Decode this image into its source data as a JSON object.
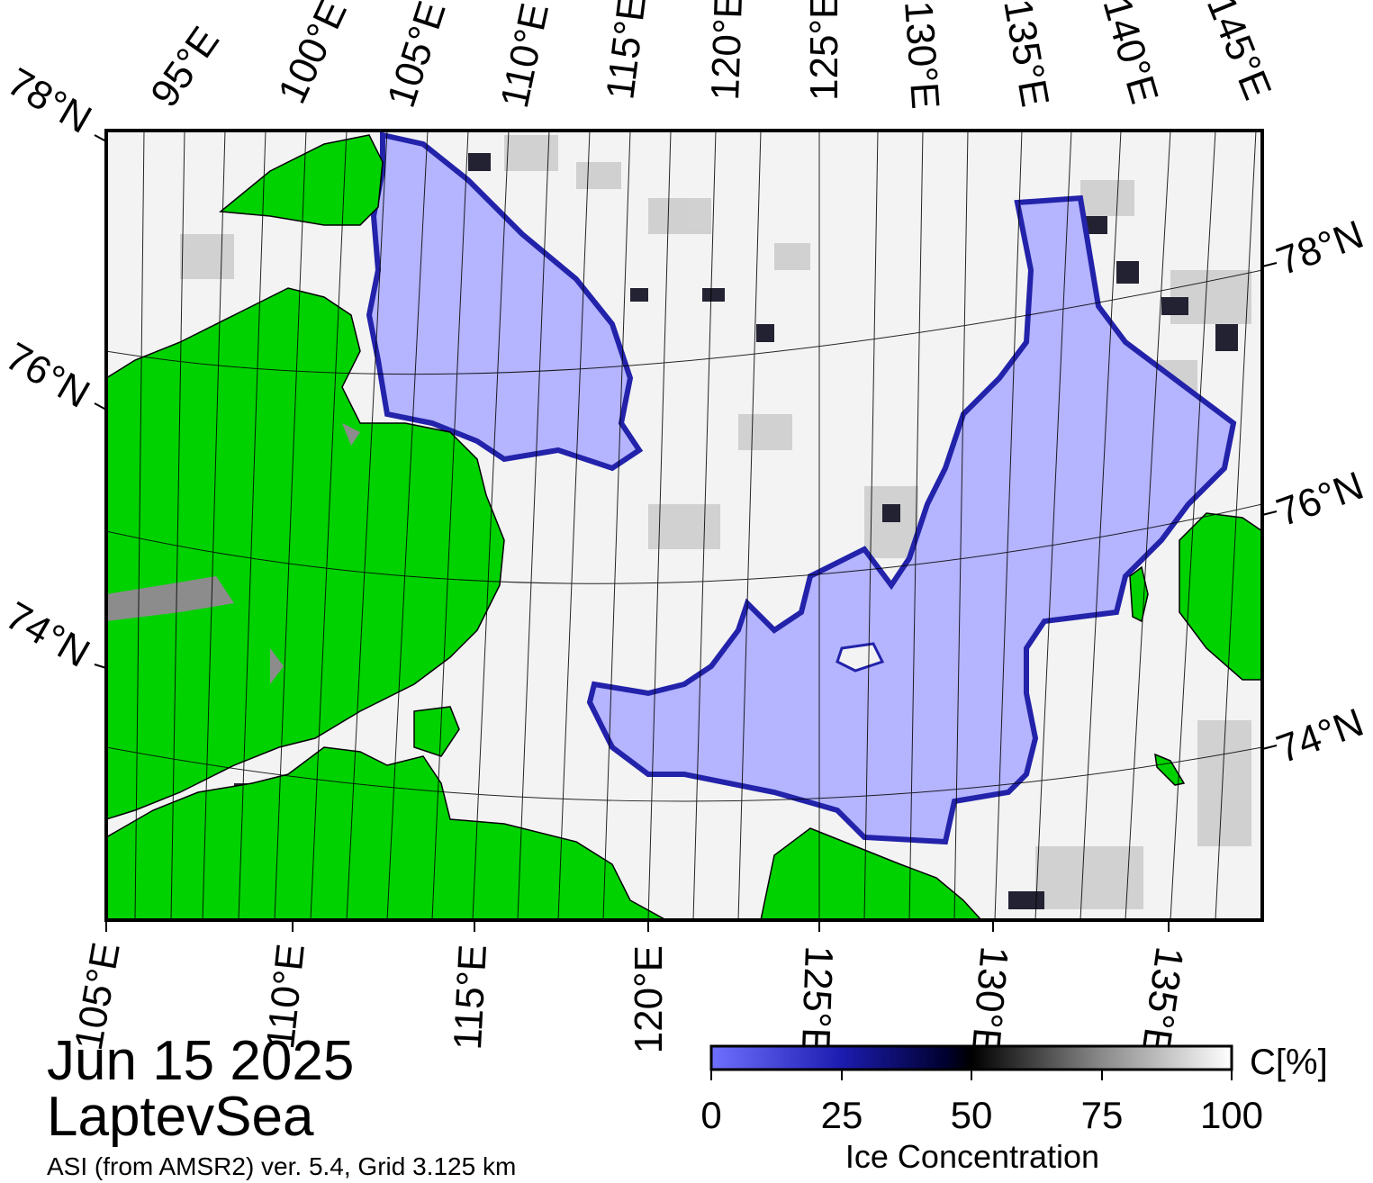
{
  "map": {
    "region": "LaptevSea",
    "date": "Jun 15 2025",
    "source": "ASI (from AMSR2) ver. 5.4,  Grid 3.125 km",
    "top_lon_labels": [
      "95°E",
      "100°E",
      "105°E",
      "110°E",
      "115°E",
      "120°E",
      "125°E",
      "130°E",
      "135°E",
      "140°E",
      "145°E"
    ],
    "bottom_lon_labels": [
      "105°E",
      "110°E",
      "115°E",
      "120°E",
      "125°E",
      "130°E",
      "135°E"
    ],
    "left_lat_labels": [
      "78°N",
      "76°N",
      "74°N"
    ],
    "right_lat_labels": [
      "78°N",
      "76°N",
      "74°N"
    ],
    "colors": {
      "land": "#00d200",
      "ice_low": "#6b6bff",
      "ice_mid": "#000044",
      "ice_high": "#ffffff",
      "open_water": "#b4b4ff",
      "coast_gray": "#8c8c8c"
    }
  },
  "colorbar": {
    "title": "Ice Concentration",
    "unit": "C[%]",
    "ticks": [
      "0",
      "25",
      "50",
      "75",
      "100"
    ],
    "range": [
      0,
      100
    ]
  }
}
